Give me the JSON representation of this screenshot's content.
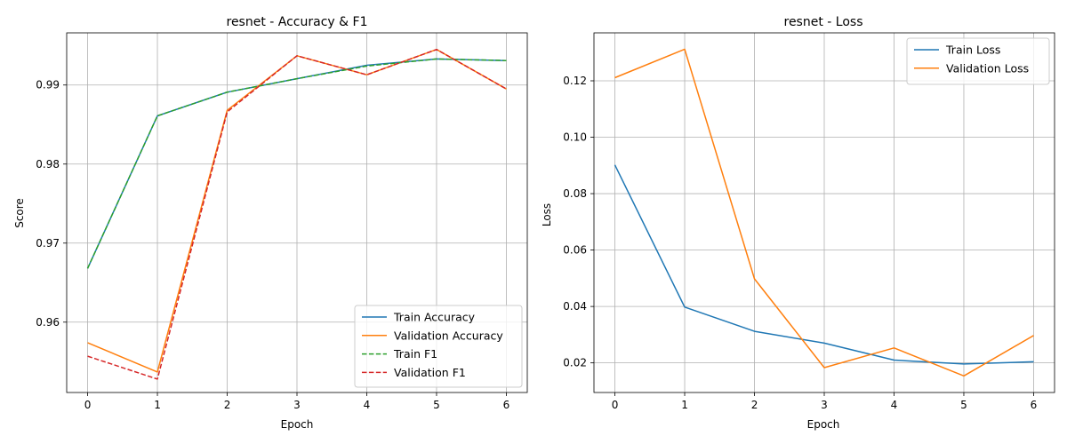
{
  "chart_data": [
    {
      "type": "line",
      "title": "resnet - Accuracy & F1",
      "xlabel": "Epoch",
      "ylabel": "Score",
      "x": [
        0,
        1,
        2,
        3,
        4,
        5,
        6
      ],
      "xlim": [
        -0.3,
        6.3
      ],
      "ylim": [
        0.9511,
        0.9966
      ],
      "xticks": [
        0,
        1,
        2,
        3,
        4,
        5,
        6
      ],
      "yticks": [
        0.96,
        0.97,
        0.98,
        0.99
      ],
      "ytick_labels": [
        "0.96",
        "0.97",
        "0.98",
        "0.99"
      ],
      "grid": true,
      "legend_position": "lower-right",
      "series": [
        {
          "name": "Train Accuracy",
          "color": "#1f77b4",
          "style": "solid",
          "values": [
            0.9668,
            0.9861,
            0.9891,
            0.9908,
            0.9925,
            0.9933,
            0.9931
          ]
        },
        {
          "name": "Validation Accuracy",
          "color": "#ff7f0e",
          "style": "solid",
          "values": [
            0.9574,
            0.9537,
            0.9868,
            0.9937,
            0.9913,
            0.9945,
            0.9895
          ]
        },
        {
          "name": "Train F1",
          "color": "#2ca02c",
          "style": "dashed",
          "values": [
            0.9668,
            0.9861,
            0.9891,
            0.9908,
            0.9924,
            0.9933,
            0.9931
          ]
        },
        {
          "name": "Validation F1",
          "color": "#d62728",
          "style": "dashed",
          "values": [
            0.9557,
            0.9528,
            0.9866,
            0.9937,
            0.9913,
            0.9945,
            0.9895
          ]
        }
      ]
    },
    {
      "type": "line",
      "title": "resnet - Loss",
      "xlabel": "Epoch",
      "ylabel": "Loss",
      "x": [
        0,
        1,
        2,
        3,
        4,
        5,
        6
      ],
      "xlim": [
        -0.3,
        6.3
      ],
      "ylim": [
        0.0095,
        0.137
      ],
      "xticks": [
        0,
        1,
        2,
        3,
        4,
        5,
        6
      ],
      "yticks": [
        0.02,
        0.04,
        0.06,
        0.08,
        0.1,
        0.12
      ],
      "ytick_labels": [
        "0.02",
        "0.04",
        "0.06",
        "0.08",
        "0.10",
        "0.12"
      ],
      "grid": true,
      "legend_position": "upper-right",
      "series": [
        {
          "name": "Train Loss",
          "color": "#1f77b4",
          "style": "solid",
          "values": [
            0.0902,
            0.0398,
            0.0312,
            0.027,
            0.021,
            0.0196,
            0.0204
          ]
        },
        {
          "name": "Validation Loss",
          "color": "#ff7f0e",
          "style": "solid",
          "values": [
            0.1211,
            0.1312,
            0.0498,
            0.0183,
            0.0253,
            0.0154,
            0.0297
          ]
        }
      ]
    }
  ]
}
